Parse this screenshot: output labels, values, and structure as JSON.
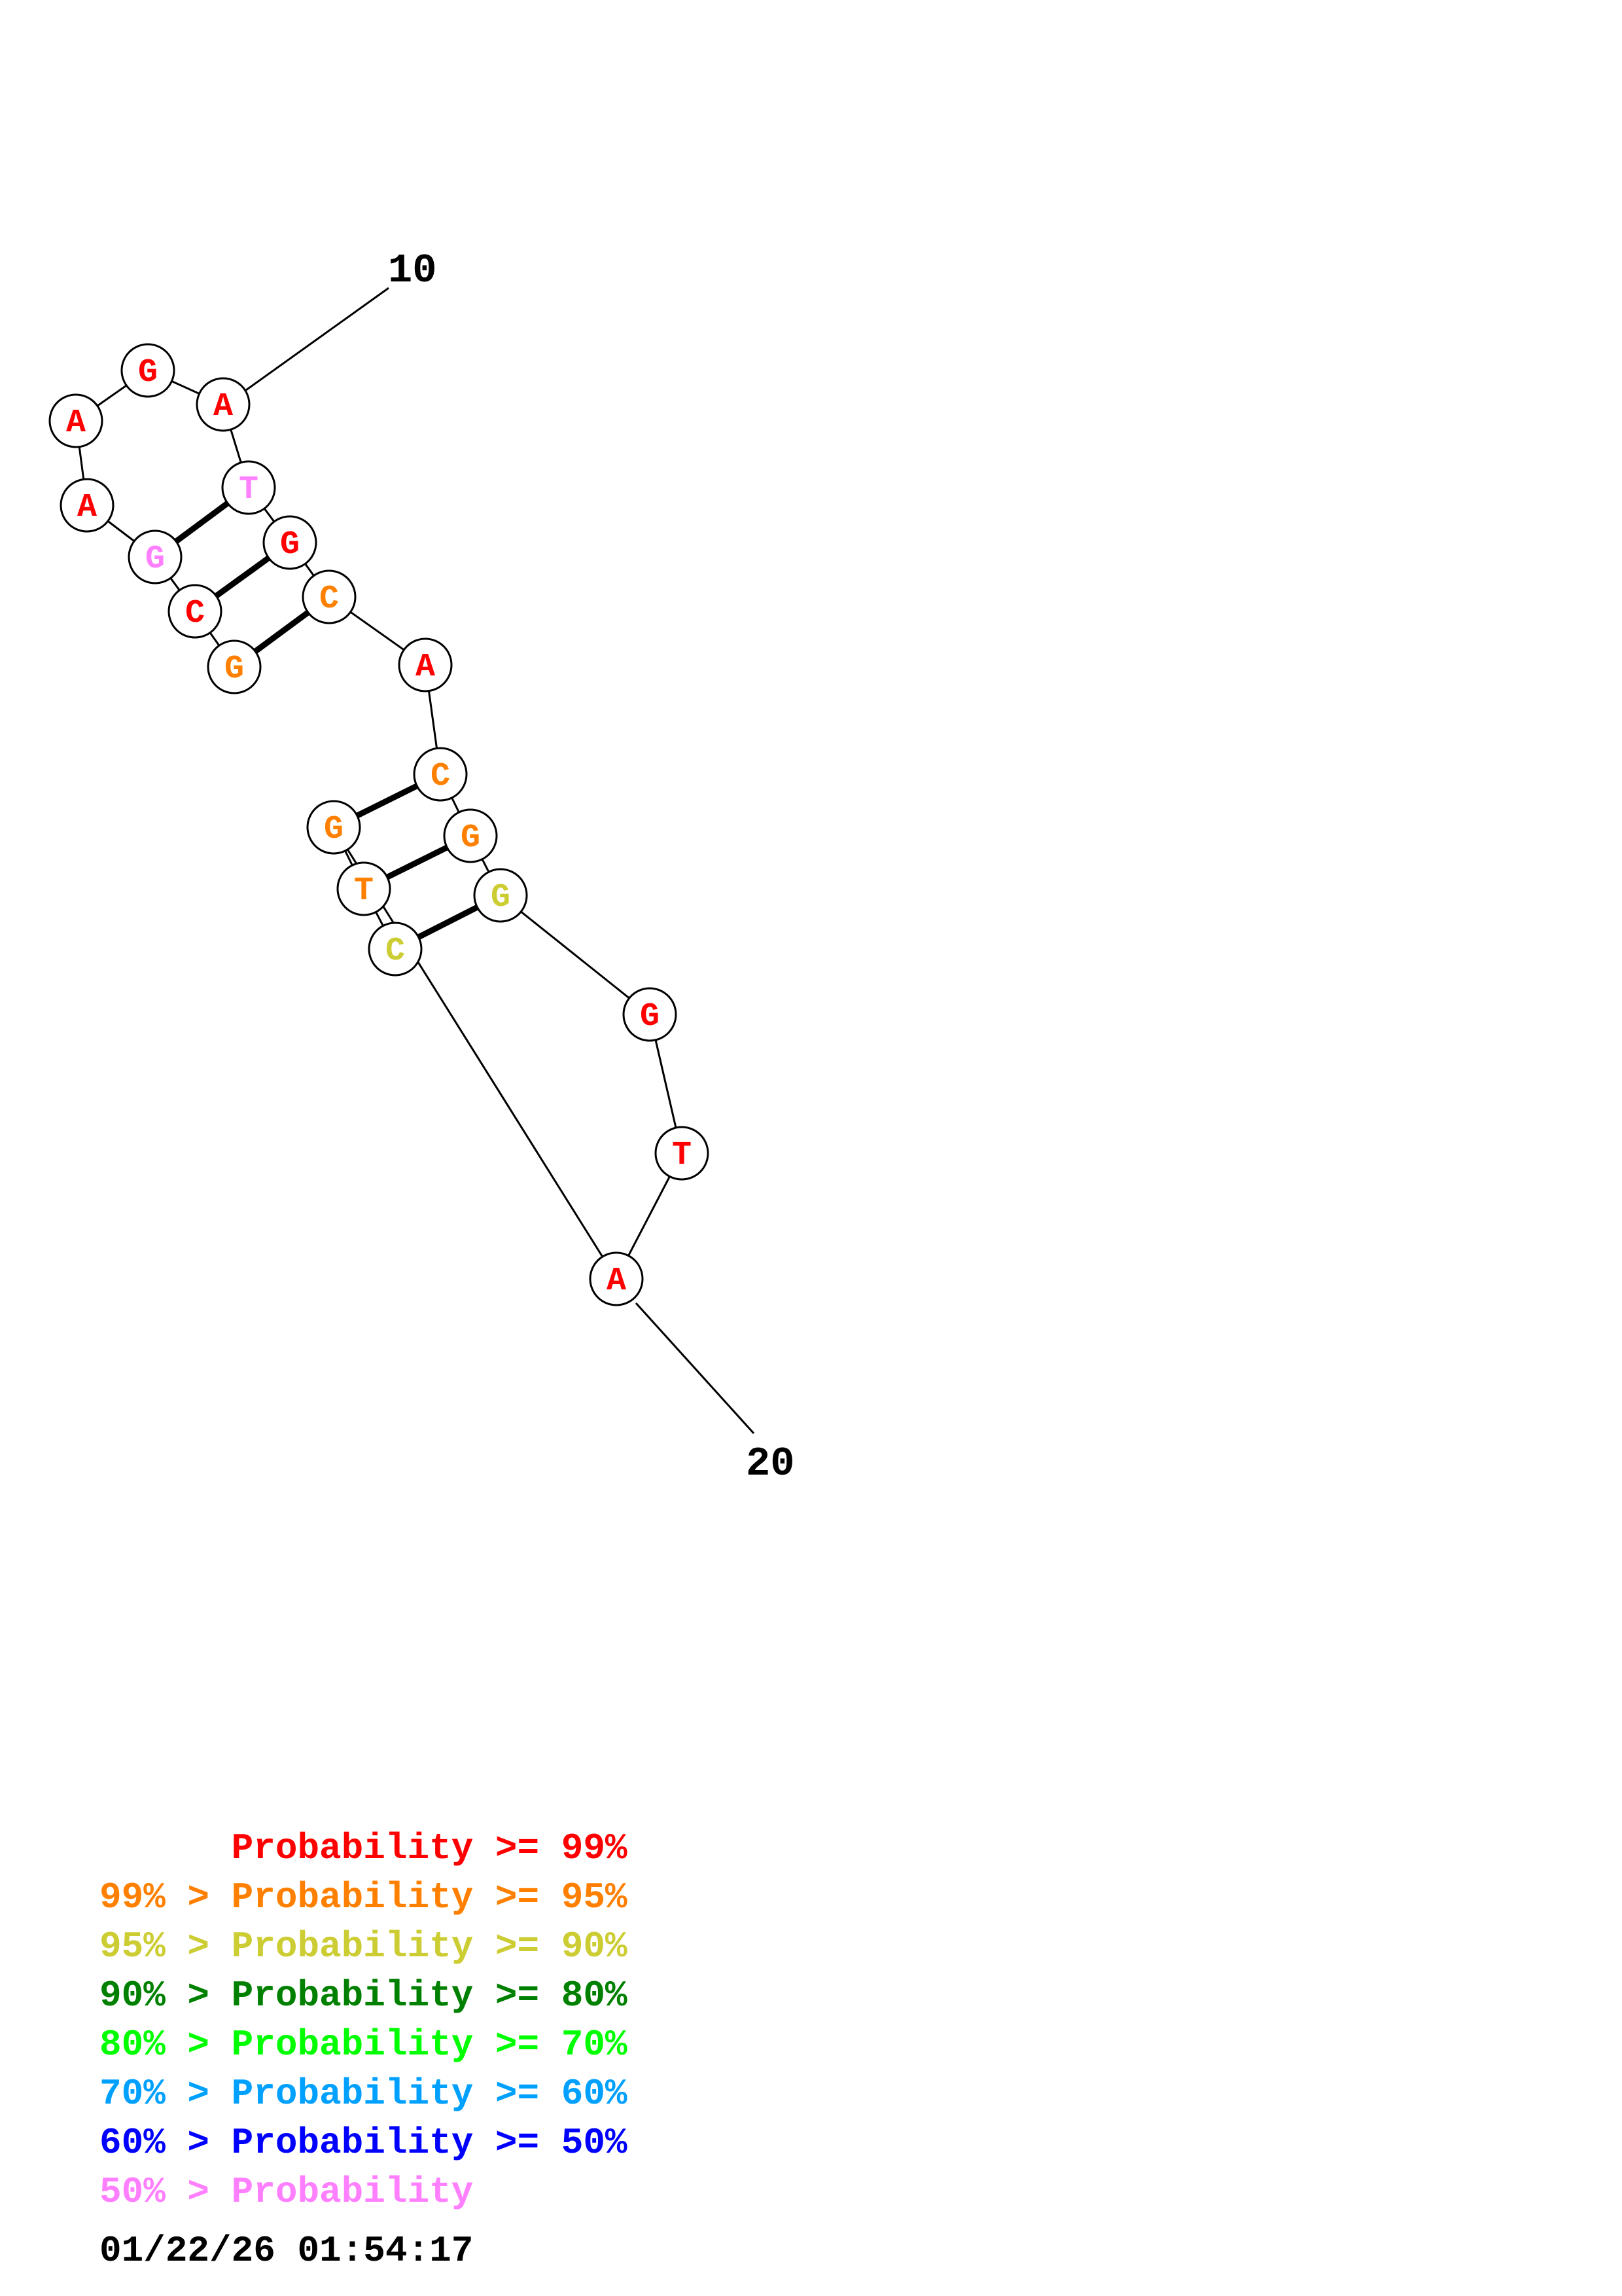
{
  "colors": {
    "red": "#ff0000",
    "orange": "#ff8000",
    "yellow": "#cccc33",
    "darkgreen": "#008000",
    "green": "#00ff00",
    "cyan": "#00a0ff",
    "blue": "#0000ff",
    "pink": "#ff80ff",
    "black": "#000000"
  },
  "structure": {
    "position_labels": [
      "10",
      "20"
    ],
    "nucleotides": [
      {
        "base": "G",
        "color": "orange"
      },
      {
        "base": "C",
        "color": "red"
      },
      {
        "base": "G",
        "color": "pink"
      },
      {
        "base": "A",
        "color": "red"
      },
      {
        "base": "A",
        "color": "red"
      },
      {
        "base": "G",
        "color": "red"
      },
      {
        "base": "A",
        "color": "red"
      },
      {
        "base": "T",
        "color": "pink"
      },
      {
        "base": "G",
        "color": "red"
      },
      {
        "base": "C",
        "color": "orange"
      },
      {
        "base": "A",
        "color": "red"
      },
      {
        "base": "C",
        "color": "orange"
      },
      {
        "base": "G",
        "color": "orange"
      },
      {
        "base": "G",
        "color": "yellow"
      },
      {
        "base": "G",
        "color": "red"
      },
      {
        "base": "T",
        "color": "red"
      },
      {
        "base": "A",
        "color": "red"
      },
      {
        "base": "G",
        "color": "orange"
      },
      {
        "base": "T",
        "color": "orange"
      },
      {
        "base": "C",
        "color": "yellow"
      }
    ],
    "pairs": [
      [
        3,
        8
      ],
      [
        2,
        9
      ],
      [
        1,
        10
      ],
      [
        18,
        12
      ],
      [
        19,
        13
      ],
      [
        20,
        14
      ]
    ]
  },
  "legend": [
    {
      "text": "      Probability >= 99%",
      "color": "red"
    },
    {
      "text": "99% > Probability >= 95%",
      "color": "orange"
    },
    {
      "text": "95% > Probability >= 90%",
      "color": "yellow"
    },
    {
      "text": "90% > Probability >= 80%",
      "color": "darkgreen"
    },
    {
      "text": "80% > Probability >= 70%",
      "color": "green"
    },
    {
      "text": "70% > Probability >= 60%",
      "color": "cyan"
    },
    {
      "text": "60% > Probability >= 50%",
      "color": "blue"
    },
    {
      "text": "50% > Probability",
      "color": "pink"
    }
  ],
  "timestamp": "01/22/26 01:54:17"
}
